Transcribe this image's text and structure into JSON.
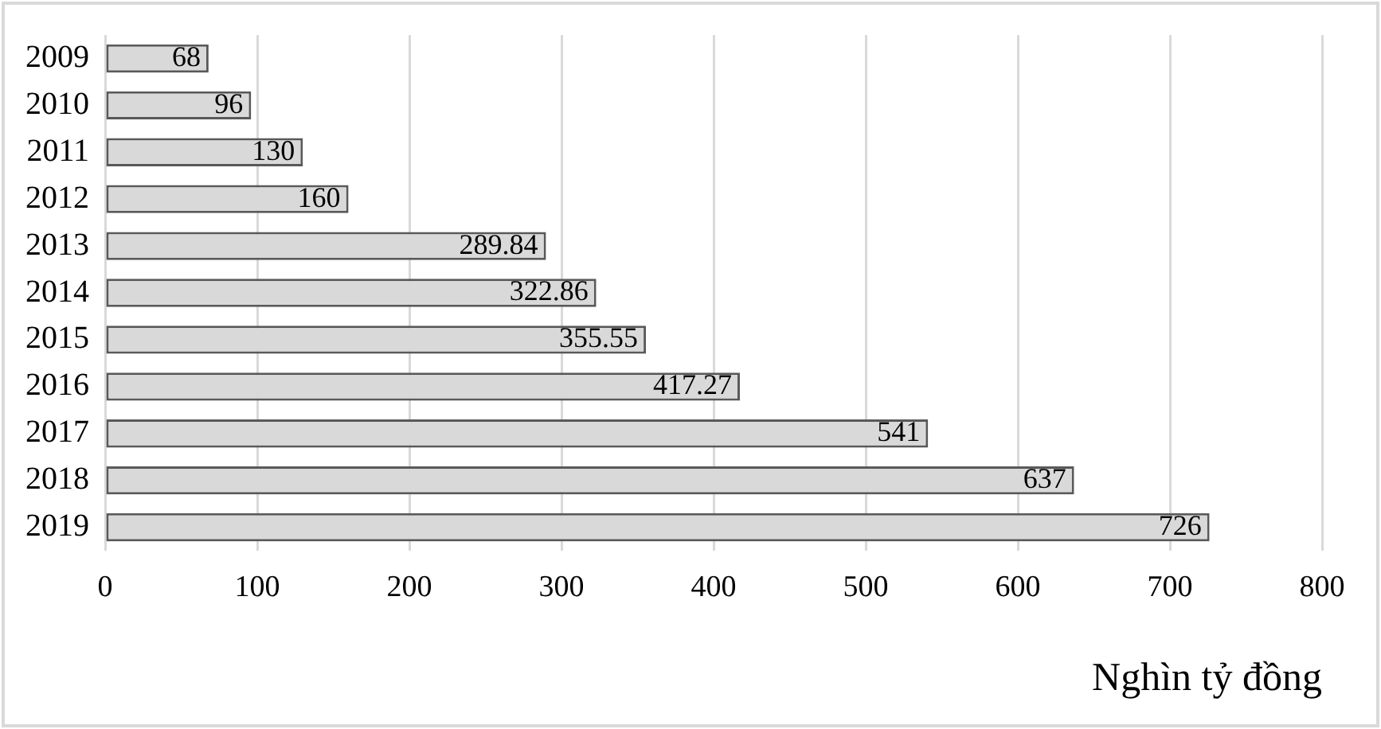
{
  "chart_data": {
    "type": "bar",
    "orientation": "horizontal",
    "categories": [
      "2009",
      "2010",
      "2011",
      "2012",
      "2013",
      "2014",
      "2015",
      "2016",
      "2017",
      "2018",
      "2019"
    ],
    "values": [
      68,
      96,
      130,
      160,
      289.84,
      322.86,
      355.55,
      417.27,
      541,
      637,
      726
    ],
    "color": "#d9d9d9",
    "xlabel": "Nghìn tỷ đồng",
    "xlim": [
      0,
      800
    ],
    "xticks": [
      0,
      100,
      200,
      300,
      400,
      500,
      600,
      700,
      800
    ],
    "grid": "x",
    "data_labels": true
  }
}
